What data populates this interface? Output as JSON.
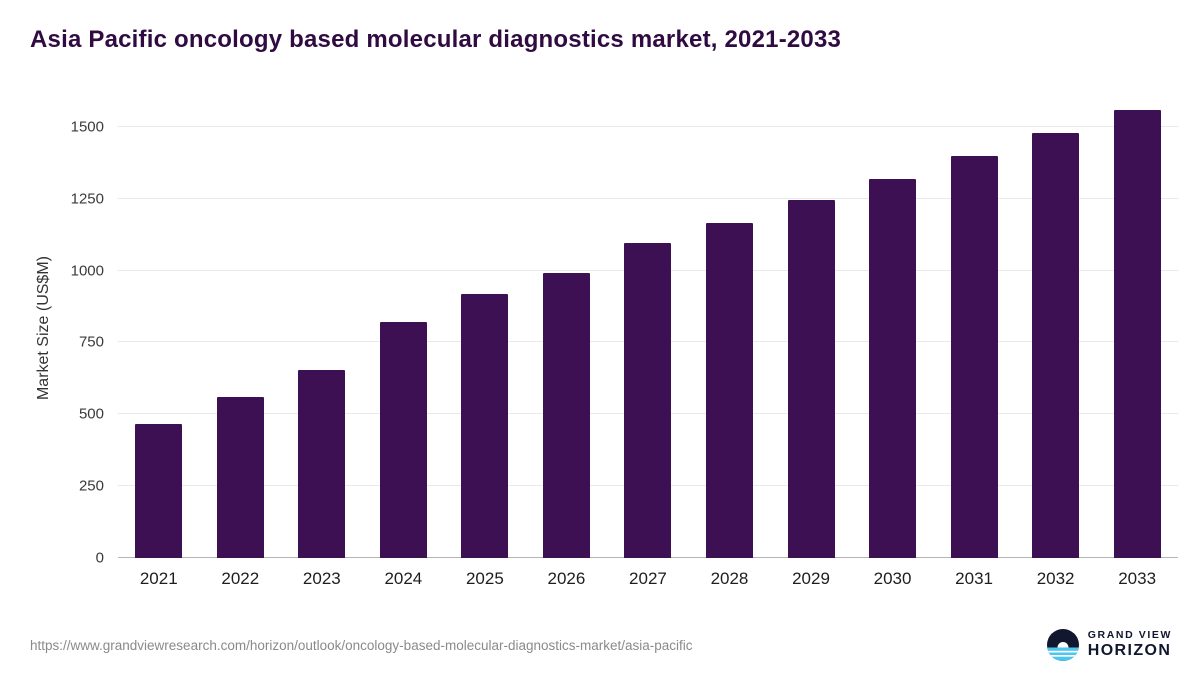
{
  "chart_data": {
    "type": "bar",
    "title": "Asia Pacific oncology based molecular diagnostics market, 2021-2033",
    "ylabel": "Market Size (US$M)",
    "xlabel": "",
    "categories": [
      "2021",
      "2022",
      "2023",
      "2024",
      "2025",
      "2026",
      "2027",
      "2028",
      "2029",
      "2030",
      "2031",
      "2032",
      "2033"
    ],
    "values": [
      465,
      560,
      655,
      820,
      920,
      990,
      1095,
      1165,
      1245,
      1320,
      1400,
      1478,
      1558
    ],
    "yticks": [
      0,
      250,
      500,
      750,
      1000,
      1250,
      1500
    ],
    "ylim": [
      0,
      1600
    ],
    "grid": true,
    "legend_position": "none",
    "bar_color": "#3D1054"
  },
  "footer": {
    "source_url": "https://www.grandviewresearch.com/horizon/outlook/oncology-based-molecular-diagnostics-market/asia-pacific",
    "logo": {
      "line1": "GRAND VIEW",
      "line2": "HORIZON"
    }
  },
  "colors": {
    "title": "#300B42",
    "bar": "#3D1054",
    "gridline": "#E9E9E9",
    "axis_line": "#B5B5B5",
    "tick_text": "#3A3A3A",
    "source_text": "#8A8A8A",
    "logo_navy": "#10172E",
    "logo_blue": "#4CC6EE"
  }
}
